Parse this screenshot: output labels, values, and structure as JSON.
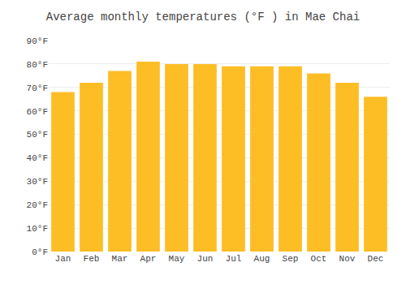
{
  "chart_data": {
    "type": "bar",
    "title": "Average monthly temperatures (°F ) in Mae Chai",
    "categories": [
      "Jan",
      "Feb",
      "Mar",
      "Apr",
      "May",
      "Jun",
      "Jul",
      "Aug",
      "Sep",
      "Oct",
      "Nov",
      "Dec"
    ],
    "values": [
      68,
      72,
      77,
      81,
      80,
      80,
      79,
      79,
      79,
      76,
      72,
      66
    ],
    "color": "#FDBD25",
    "ylim": [
      0,
      90
    ],
    "yticks": [
      {
        "value": 0,
        "label": "0°F"
      },
      {
        "value": 10,
        "label": "10°F"
      },
      {
        "value": 20,
        "label": "20°F"
      },
      {
        "value": 30,
        "label": "30°F"
      },
      {
        "value": 40,
        "label": "40°F"
      },
      {
        "value": 50,
        "label": "50°F"
      },
      {
        "value": 60,
        "label": "60°F"
      },
      {
        "value": 70,
        "label": "70°F"
      },
      {
        "value": 80,
        "label": "80°F"
      },
      {
        "value": 90,
        "label": "90°F"
      }
    ],
    "grid": true
  }
}
